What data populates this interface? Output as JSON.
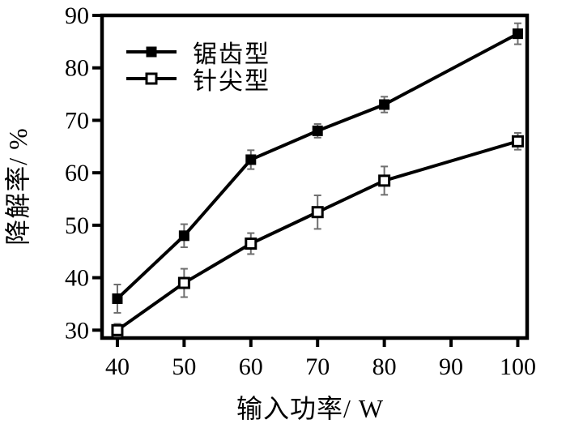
{
  "chart_data": {
    "type": "line",
    "title": "",
    "xlabel": "输入功率/ W",
    "ylabel": "降解率/ %",
    "x": [
      40,
      50,
      60,
      70,
      80,
      100
    ],
    "series": [
      {
        "name": "锯齿型",
        "marker": "filled-square",
        "values": [
          36,
          48,
          62.5,
          68,
          73,
          86.5
        ],
        "errors": [
          2.7,
          2.2,
          1.8,
          1.3,
          1.5,
          2.0
        ]
      },
      {
        "name": "针尖型",
        "marker": "open-square",
        "values": [
          30,
          39,
          46.5,
          52.5,
          58.5,
          66
        ],
        "errors": [
          1.2,
          2.7,
          2.0,
          3.2,
          2.7,
          1.6
        ]
      }
    ],
    "x_ticks": [
      40,
      50,
      60,
      70,
      80,
      90,
      100
    ],
    "y_ticks": [
      30,
      40,
      50,
      60,
      70,
      80,
      90
    ],
    "xlim": [
      37.7,
      101.4
    ],
    "ylim": [
      28.5,
      90
    ],
    "grid": false,
    "legend_position": "top-left",
    "colors": {
      "line": "#000000",
      "error_bar": "#6e6e6e",
      "background": "#ffffff"
    }
  }
}
